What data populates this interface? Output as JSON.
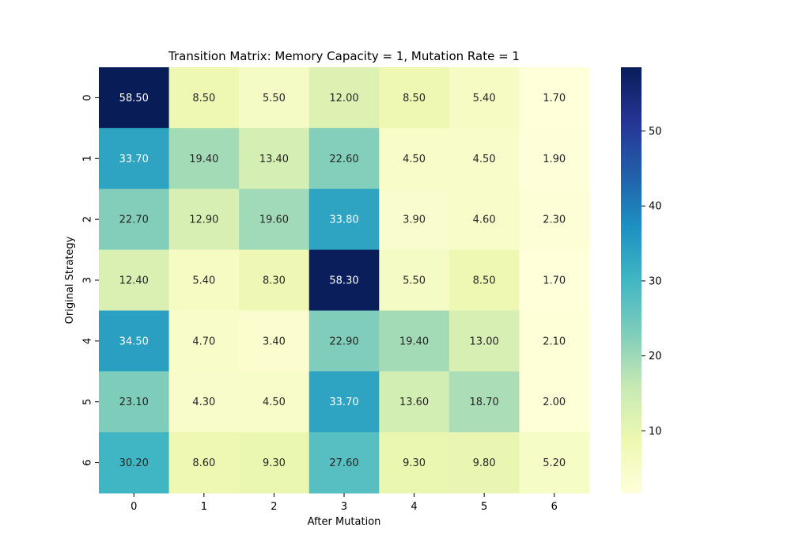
{
  "chart_data": {
    "type": "heatmap",
    "title": "Transition Matrix: Memory Capacity = 1, Mutation Rate = 1",
    "xlabel": "After Mutation",
    "ylabel": "Original Strategy",
    "x_categories": [
      "0",
      "1",
      "2",
      "3",
      "4",
      "5",
      "6"
    ],
    "y_categories": [
      "0",
      "1",
      "2",
      "3",
      "4",
      "5",
      "6"
    ],
    "values": [
      [
        58.5,
        8.5,
        5.5,
        12.0,
        8.5,
        5.4,
        1.7
      ],
      [
        33.7,
        19.4,
        13.4,
        22.6,
        4.5,
        4.5,
        1.9
      ],
      [
        22.7,
        12.9,
        19.6,
        33.8,
        3.9,
        4.6,
        2.3
      ],
      [
        12.4,
        5.4,
        8.3,
        58.3,
        5.5,
        8.5,
        1.7
      ],
      [
        34.5,
        4.7,
        3.4,
        22.9,
        19.4,
        13.0,
        2.1
      ],
      [
        23.1,
        4.3,
        4.5,
        33.7,
        13.6,
        18.7,
        2.0
      ],
      [
        30.2,
        8.6,
        9.3,
        27.6,
        9.3,
        9.8,
        5.2
      ]
    ],
    "value_format": "2 decimals",
    "colormap": "YlGnBu",
    "color_range": [
      1.7,
      58.5
    ],
    "colorbar_ticks": [
      10,
      20,
      30,
      40,
      50
    ],
    "legend": "colorbar-right"
  }
}
